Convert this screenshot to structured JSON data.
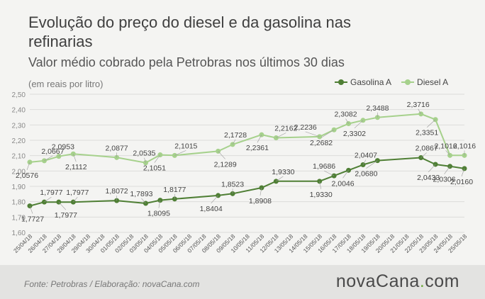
{
  "title": "Evolução do preço do diesel e da gasolina nas refinarias",
  "subtitle": "Valor médio cobrado pela Petrobras nos últimos 30 dias",
  "unit_note": "(em reais por litro)",
  "footer": {
    "source": "Fonte:  Petrobras  / Elaboração:  novaCana.com",
    "logo_part1": "novaCana",
    "logo_dot": ".",
    "logo_part2": "com"
  },
  "chart_data": {
    "type": "line",
    "categories": [
      "25/04/18",
      "26/04/18",
      "27/04/18",
      "28/04/18",
      "29/04/18",
      "30/04/18",
      "01/05/18",
      "02/05/18",
      "03/05/18",
      "04/05/18",
      "05/05/18",
      "06/05/18",
      "07/05/18",
      "08/05/18",
      "09/05/18",
      "10/05/18",
      "11/05/18",
      "12/05/18",
      "13/05/18",
      "14/05/18",
      "15/05/18",
      "16/05/18",
      "17/05/18",
      "18/05/18",
      "19/05/18",
      "20/05/18",
      "21/05/18",
      "22/05/18",
      "23/05/18",
      "24/05/18",
      "25/05/18"
    ],
    "ylim": [
      1.6,
      2.5
    ],
    "yticks": [
      "1,60",
      "1,70",
      "1,80",
      "1,90",
      "2,00",
      "2,10",
      "2,20",
      "2,30",
      "2,40",
      "2,50"
    ],
    "grid": true,
    "legend_position": "top-right",
    "series": [
      {
        "name": "Gasolina A",
        "color": "#4f7f35",
        "points": [
          [
            0,
            1.7727
          ],
          [
            1,
            1.7977
          ],
          [
            2,
            1.7977
          ],
          [
            3,
            1.7977
          ],
          [
            6,
            1.8072
          ],
          [
            8,
            1.7893
          ],
          [
            9,
            1.8095
          ],
          [
            10,
            1.8177
          ],
          [
            13,
            1.8404
          ],
          [
            14,
            1.8523
          ],
          [
            16,
            1.8908
          ],
          [
            17,
            1.933
          ],
          [
            20,
            1.933
          ],
          [
            21,
            1.9686
          ],
          [
            22,
            2.0046
          ],
          [
            23,
            2.0407
          ],
          [
            24,
            2.068
          ],
          [
            27,
            2.0867
          ],
          [
            28,
            2.0433
          ],
          [
            29,
            2.0306
          ],
          [
            30,
            2.016
          ]
        ],
        "labels": [
          "1,7727",
          "1,7977",
          "1,7977",
          "1,7977",
          "1,8072",
          "1,7893",
          "1,8095",
          "1,8177",
          "1,8404",
          "1,8523",
          "1,8908",
          "1,9330",
          "1,9330",
          "1,9686",
          "2,0046",
          "2,0407",
          "2,0680",
          "2,0867",
          "2,0433",
          "2,0306",
          "2,0160"
        ]
      },
      {
        "name": "Diesel A",
        "color": "#a6d18c",
        "points": [
          [
            0,
            2.0576
          ],
          [
            1,
            2.0667
          ],
          [
            2,
            2.0953
          ],
          [
            3,
            2.1112
          ],
          [
            6,
            2.0877
          ],
          [
            8,
            2.0535
          ],
          [
            9,
            2.1051
          ],
          [
            10,
            2.1015
          ],
          [
            13,
            2.1289
          ],
          [
            14,
            2.1728
          ],
          [
            16,
            2.2361
          ],
          [
            17,
            2.2162
          ],
          [
            20,
            2.2236
          ],
          [
            21,
            2.2682
          ],
          [
            22,
            2.3082
          ],
          [
            23,
            2.3302
          ],
          [
            24,
            2.3488
          ],
          [
            27,
            2.3716
          ],
          [
            28,
            2.3351
          ],
          [
            29,
            2.1016
          ],
          [
            30,
            2.1016
          ]
        ],
        "labels": [
          "2,0576",
          "2,0667",
          "2,0953",
          "2,1112",
          "2,0877",
          "2,0535",
          "2,1051",
          "2,1015",
          "2,1289",
          "2,1728",
          "2,2361",
          "2,2162",
          "2,2236",
          "2,2682",
          "2,3082",
          "2,3302",
          "2,3488",
          "2,3716",
          "2,3351",
          "2,1016",
          "2,1016"
        ]
      }
    ]
  }
}
